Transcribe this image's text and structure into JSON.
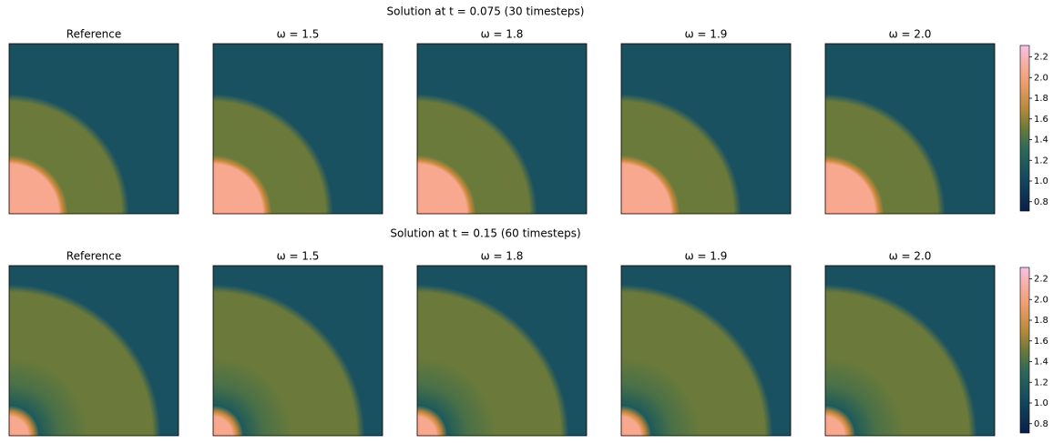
{
  "rows": [
    {
      "title": "Solution at t = 0.075 (30 timesteps)",
      "panels": [
        "Reference",
        "ω = 1.5",
        "ω = 1.8",
        "ω = 1.9",
        "ω = 2.0"
      ],
      "colorbar": {
        "lim": [
          0.71,
          2.31
        ],
        "ticks": [
          0.8,
          {
            "value": 1.0,
            "label": "1.0"
          },
          1.2,
          1.4,
          1.6,
          1.8,
          {
            "value": 2.0,
            "label": "2.0"
          },
          2.2
        ]
      }
    },
    {
      "title": "Solution at t = 0.15 (60 timesteps)",
      "panels": [
        "Reference",
        "ω = 1.5",
        "ω = 1.8",
        "ω = 1.9",
        "ω = 2.0"
      ],
      "colorbar": {
        "lim": [
          0.71,
          2.31
        ],
        "ticks": [
          0.8,
          {
            "value": 1.0,
            "label": "1.0"
          },
          1.2,
          1.4,
          1.6,
          1.8,
          {
            "value": 2.0,
            "label": "2.0"
          },
          2.2
        ]
      }
    }
  ]
}
